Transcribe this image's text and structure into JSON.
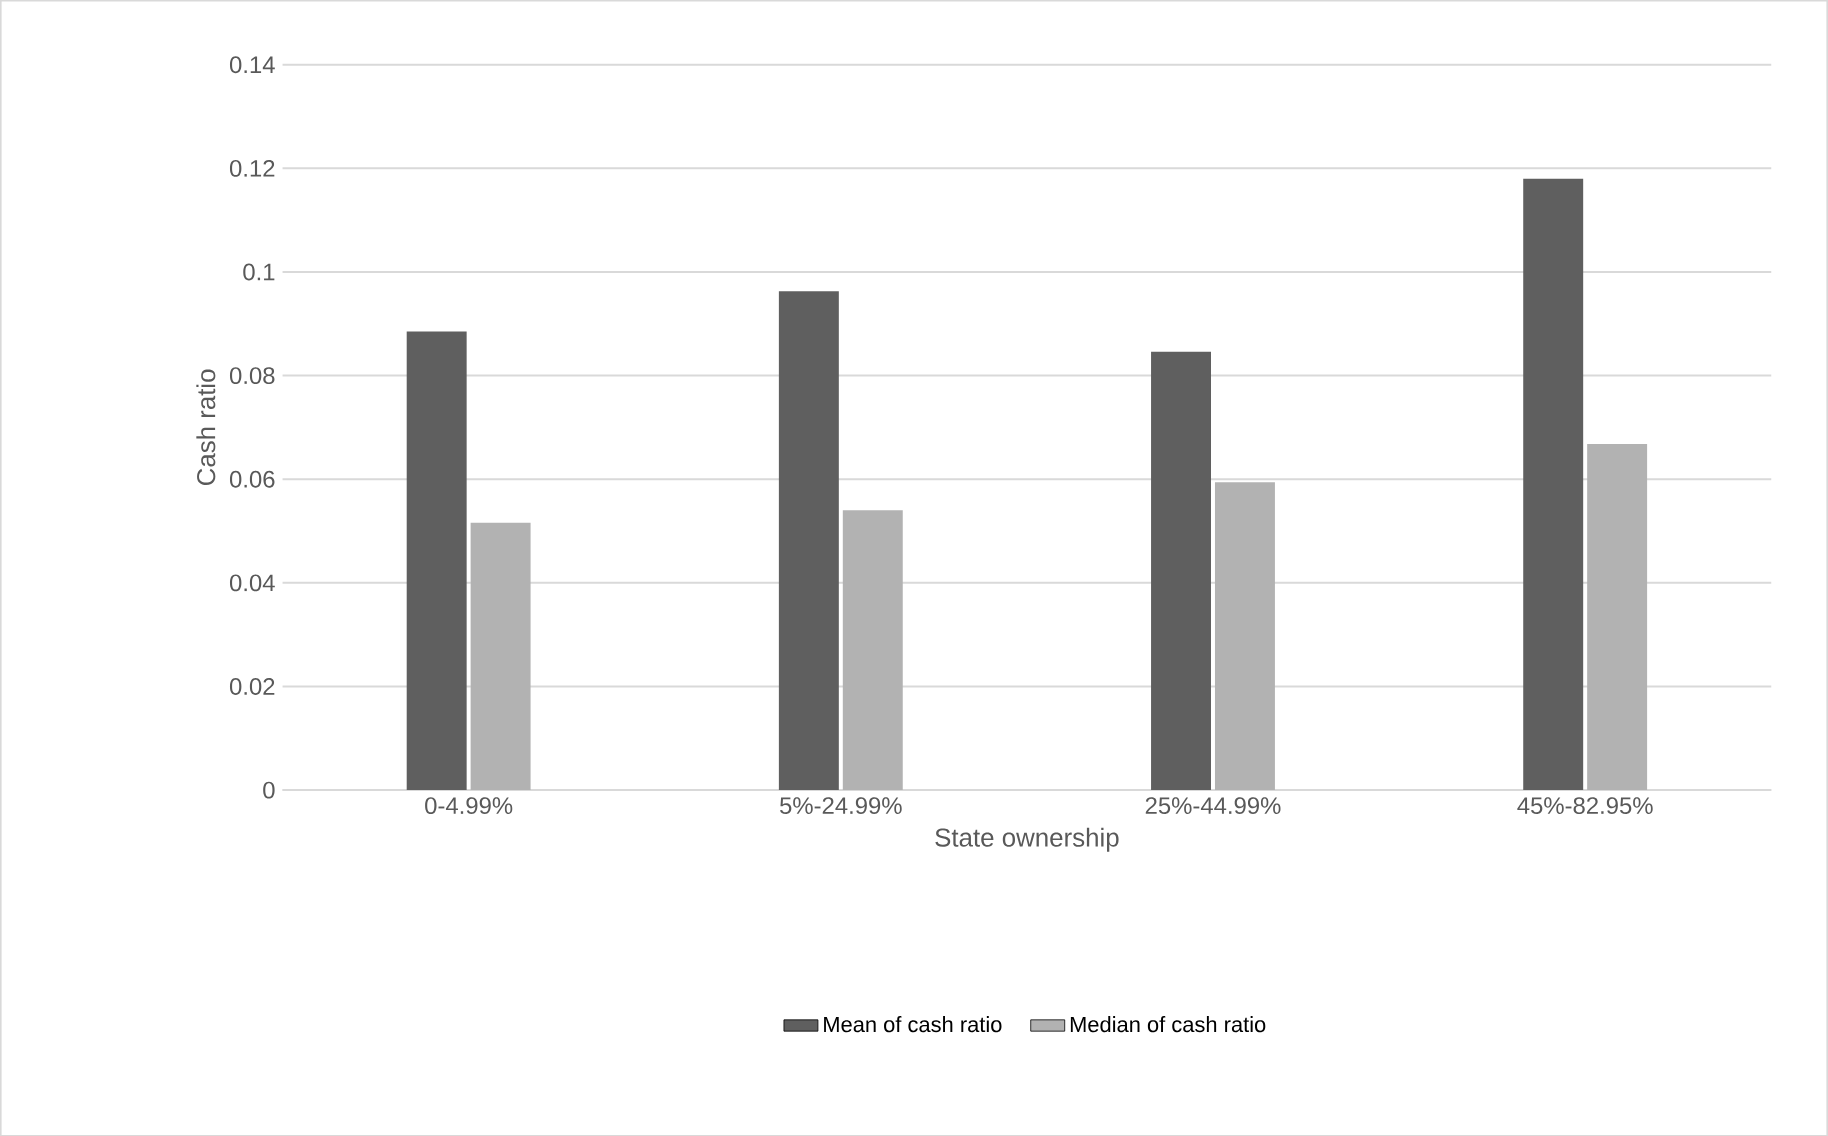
{
  "chart_data": {
    "type": "bar",
    "xlabel": "State ownership",
    "ylabel": "Cash ratio",
    "categories": [
      "0-4.99%",
      "5%-24.99%",
      "25%-44.99%",
      "45%-82.95%"
    ],
    "series": [
      {
        "name": "Mean of cash ratio",
        "color": "#5f5f5f",
        "values": [
          0.0885,
          0.0963,
          0.0846,
          0.118
        ]
      },
      {
        "name": "Median of cash ratio",
        "color": "#b2b2b2",
        "values": [
          0.0516,
          0.054,
          0.0594,
          0.0668
        ]
      }
    ],
    "ylim": [
      0,
      0.14
    ],
    "yticks": [
      0,
      0.02,
      0.04,
      0.06,
      0.08,
      0.1,
      0.12,
      0.14
    ],
    "grid": "y",
    "legend": "bottom"
  }
}
